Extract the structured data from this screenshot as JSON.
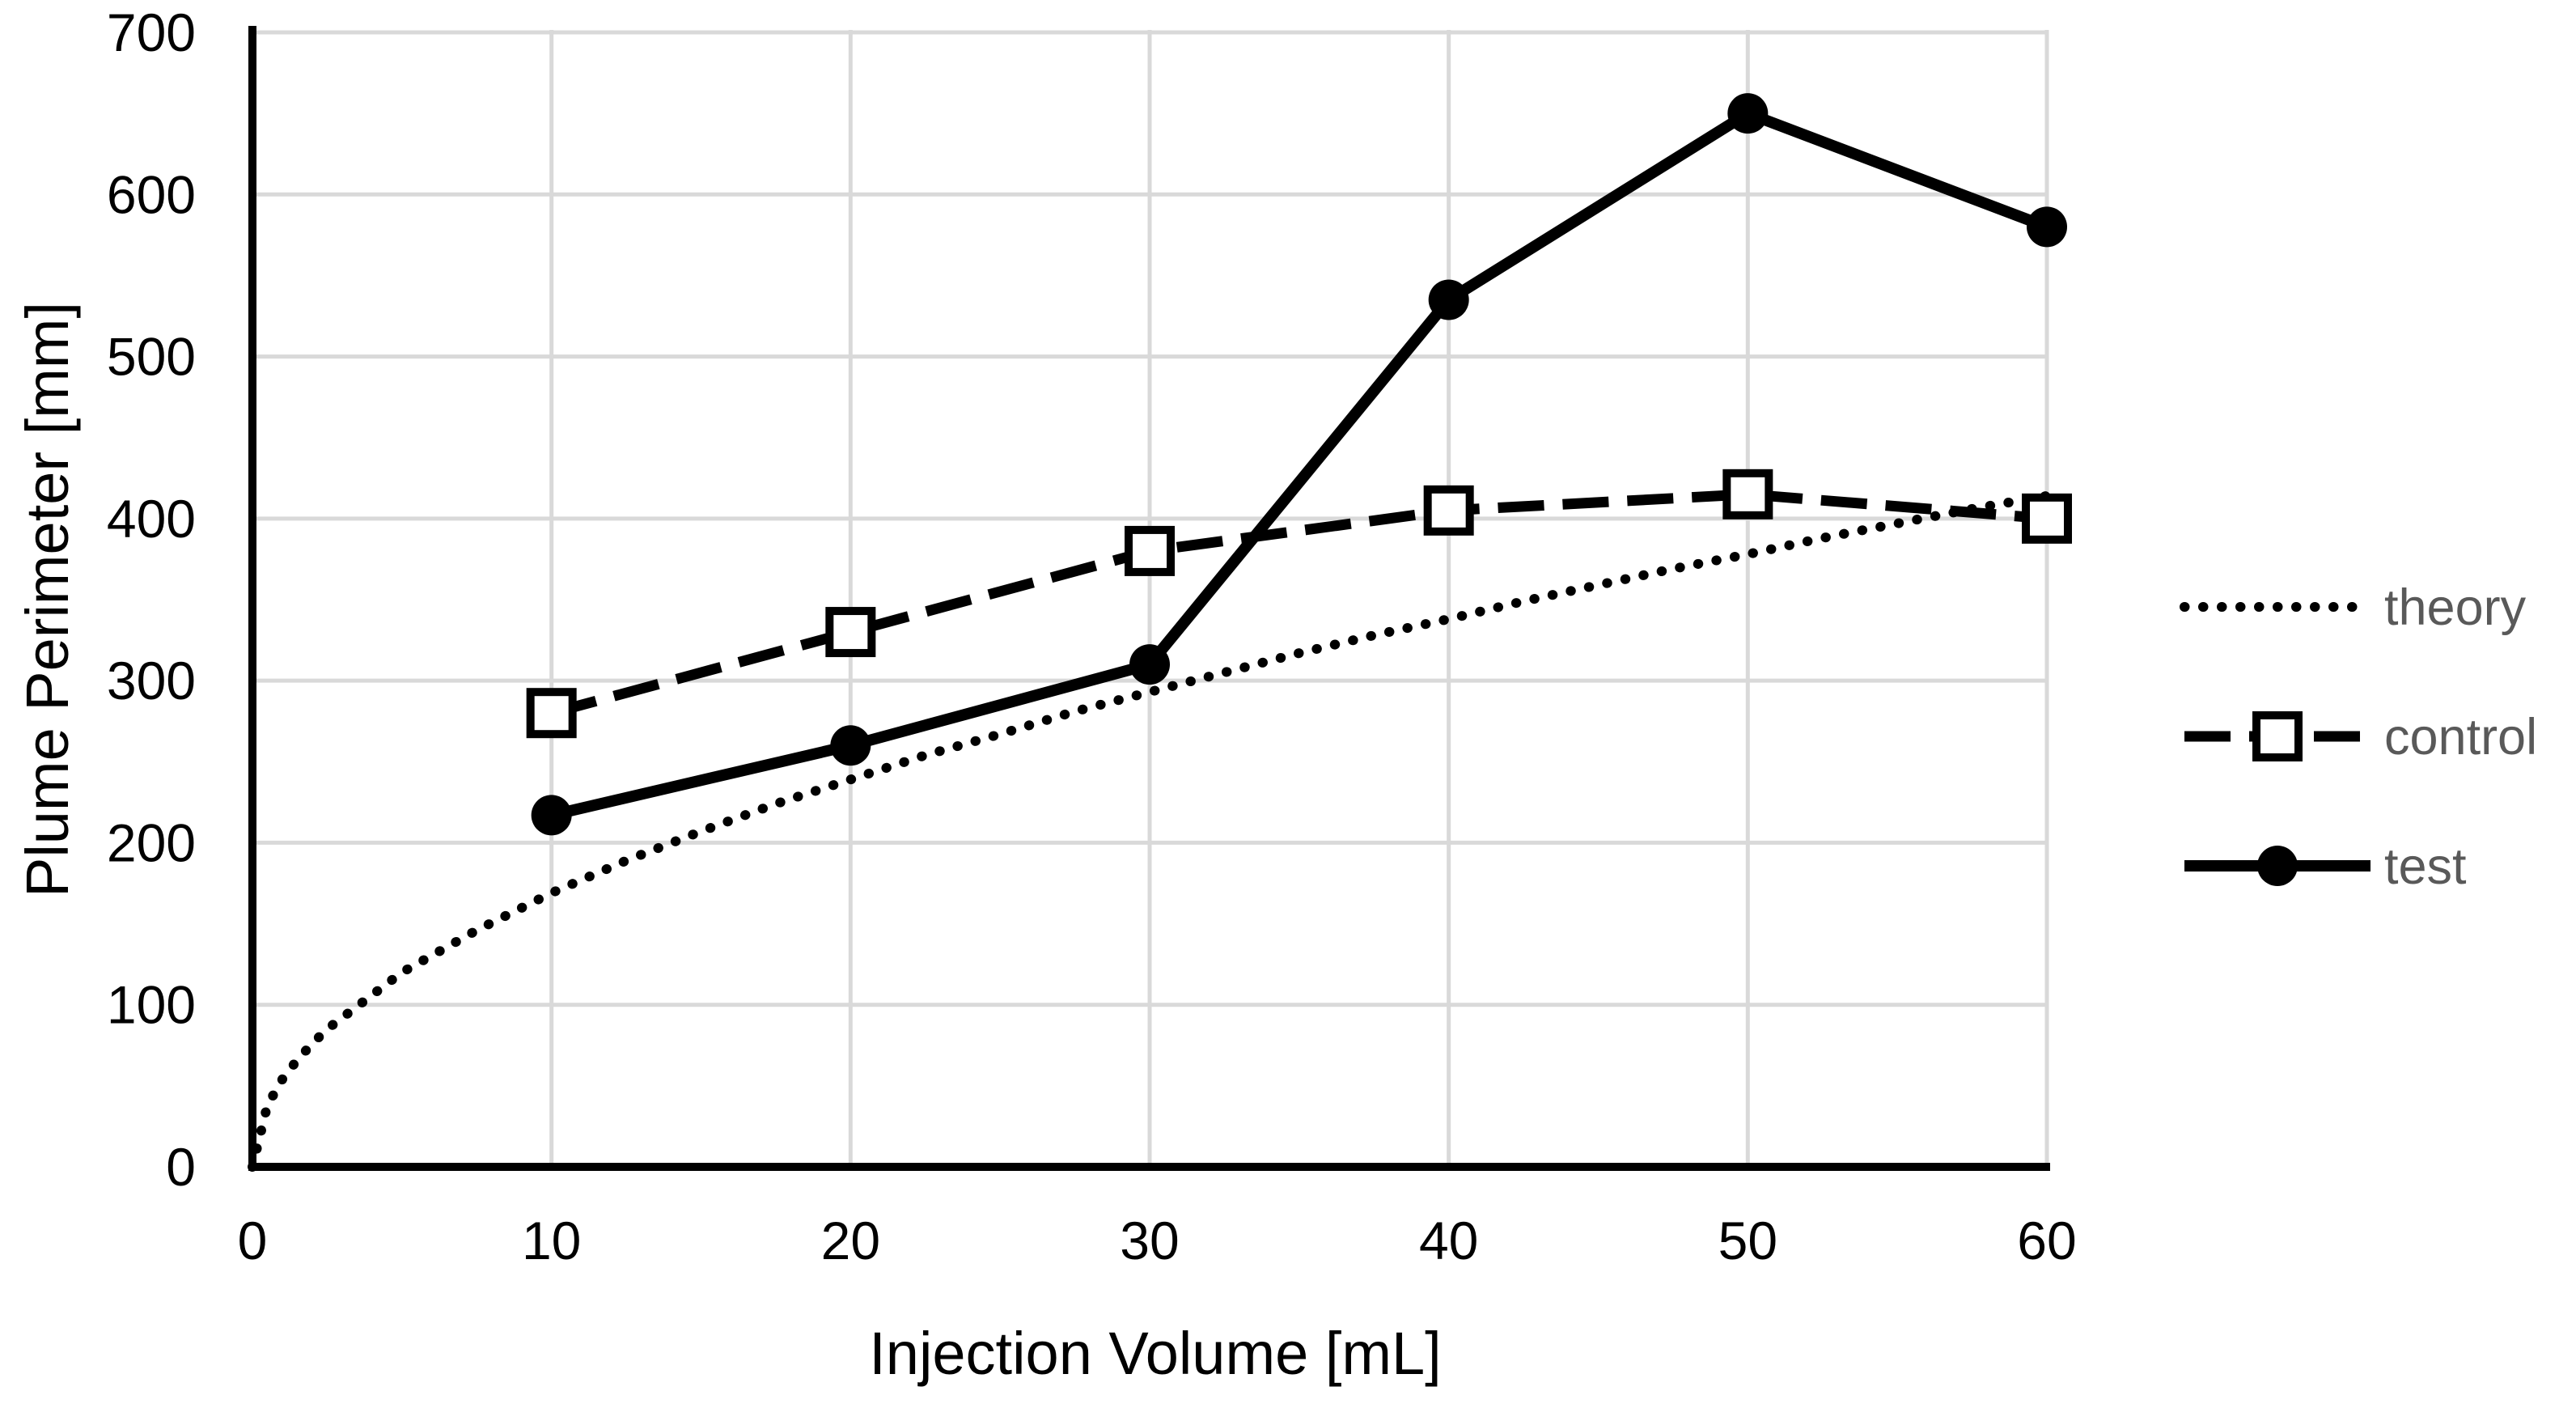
{
  "figure": {
    "background": "#FFFFFF",
    "axis_color": "#000000",
    "tick_label_color": "#000000",
    "gridline_color": "#D9D9D9",
    "legend_text_color": "#595959",
    "series_color": "#000000",
    "marker_fill_open": "#FFFFFF"
  },
  "chart_data": {
    "type": "line",
    "title": "",
    "xlabel": "Injection Volume [mL]",
    "ylabel": "Plume Perimeter [mm]",
    "xlim": [
      0,
      60
    ],
    "ylim": [
      0,
      700
    ],
    "x_ticks": [
      "0",
      "10",
      "20",
      "30",
      "40",
      "50",
      "60"
    ],
    "x_tick_values": [
      0,
      10,
      20,
      30,
      40,
      50,
      60
    ],
    "y_ticks": [
      "0",
      "100",
      "200",
      "300",
      "400",
      "500",
      "600",
      "700"
    ],
    "y_tick_values": [
      0,
      100,
      200,
      300,
      400,
      500,
      600,
      700
    ],
    "grid": true,
    "legend_position": "right",
    "legend": [
      "theory",
      "control",
      "test"
    ],
    "series": [
      {
        "name": "theory",
        "line_style": "dotted",
        "marker": "none",
        "x": [
          0,
          0.5,
          1,
          1.5,
          2,
          2.5,
          5,
          7.5,
          10,
          12.5,
          15,
          17.5,
          20,
          22.5,
          25,
          27.5,
          30,
          32.5,
          35,
          37.5,
          40,
          42.5,
          45,
          47.5,
          50,
          52.5,
          55,
          57.5,
          60
        ],
        "y": [
          0,
          38,
          54,
          66,
          76,
          85,
          120,
          146,
          169,
          189,
          207,
          224,
          239,
          254,
          267,
          281,
          293,
          305,
          317,
          328,
          338,
          349,
          359,
          369,
          378,
          388,
          397,
          406,
          414
        ]
      },
      {
        "name": "control",
        "line_style": "dashed",
        "marker": "open-square",
        "x": [
          10,
          20,
          30,
          40,
          50,
          60
        ],
        "y": [
          280,
          330,
          380,
          405,
          415,
          400
        ]
      },
      {
        "name": "test",
        "line_style": "solid",
        "marker": "filled-circle",
        "x": [
          10,
          20,
          30,
          40,
          50,
          60
        ],
        "y": [
          217,
          260,
          310,
          535,
          650,
          580
        ]
      }
    ]
  }
}
